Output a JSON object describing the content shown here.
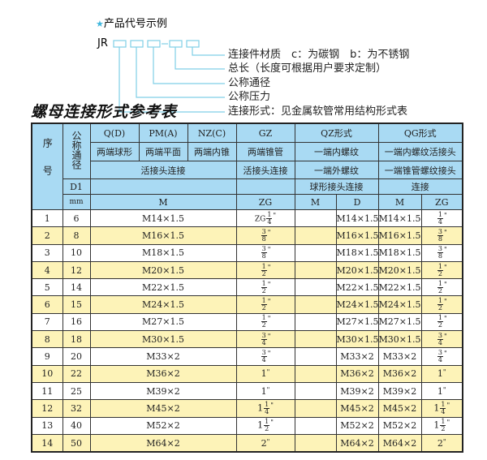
{
  "example": {
    "heading": "产品代号示例",
    "code_prefix": "JR",
    "separator": "-",
    "labels": [
      "连接件材质　c：为碳钢　b：为不锈钢",
      "总长（长度可根据用户要求定制）",
      "公称通径",
      "公称压力",
      "连接形式：见金属软管常用结构形式表"
    ],
    "accent_color": "#3fb6dc"
  },
  "table_title": "螺母连接形式参考表",
  "header": {
    "seq": "序号",
    "nominal": "公称通径",
    "qd": "Q(D)",
    "pma": "PM(A)",
    "nzc": "NZ(C)",
    "gz": "GZ",
    "qz": "QZ形式",
    "qg": "QG形式",
    "qd_desc": "两端球形",
    "pma_desc": "两端平面",
    "nzc_desc": "两端内锥",
    "gz_desc": "两端锥管",
    "qz_desc": "一端内螺纹",
    "qg_desc": "一端内螺纹活接头",
    "union": "活接头连接",
    "gz_union": "活接头连接",
    "qz_desc2": "一端外螺纹",
    "qg_desc2": "一端锥管螺纹接头",
    "d1": "D1",
    "qz_desc3": "球形接头连接",
    "qg_desc3": "连接",
    "mm": "mm",
    "m": "M",
    "zg": "ZG",
    "qz_m": "M",
    "qz_d": "D",
    "qg_m": "M",
    "qg_zg": "ZG",
    "bg_color": "#a9daf3"
  },
  "rows": [
    {
      "no": "1",
      "dn": "6",
      "m": "M14×1.5",
      "zg": {
        "pre": "ZG",
        "whole": "",
        "num": "1",
        "den": "4"
      },
      "qz_m": "",
      "qz_d": "M14×1.5",
      "qg_m": "M14×1.5",
      "qg_zg": {
        "pre": "",
        "whole": "",
        "num": "1",
        "den": "4"
      }
    },
    {
      "no": "2",
      "dn": "8",
      "m": "M16×1.5",
      "zg": {
        "pre": "",
        "whole": "",
        "num": "3",
        "den": "8"
      },
      "qz_m": "",
      "qz_d": "M16×1.5",
      "qg_m": "M16×1.5",
      "qg_zg": {
        "pre": "",
        "whole": "",
        "num": "3",
        "den": "8"
      }
    },
    {
      "no": "3",
      "dn": "10",
      "m": "M18×1.5",
      "zg": {
        "pre": "",
        "whole": "",
        "num": "3",
        "den": "8"
      },
      "qz_m": "",
      "qz_d": "M18×1.5",
      "qg_m": "M18×1.5",
      "qg_zg": {
        "pre": "",
        "whole": "",
        "num": "3",
        "den": "8"
      }
    },
    {
      "no": "4",
      "dn": "12",
      "m": "M20×1.5",
      "zg": {
        "pre": "",
        "whole": "",
        "num": "1",
        "den": "2"
      },
      "qz_m": "",
      "qz_d": "M20×1.5",
      "qg_m": "M20×1.5",
      "qg_zg": {
        "pre": "",
        "whole": "",
        "num": "1",
        "den": "2"
      }
    },
    {
      "no": "5",
      "dn": "14",
      "m": "M22×1.5",
      "zg": {
        "pre": "",
        "whole": "",
        "num": "1",
        "den": "2"
      },
      "qz_m": "",
      "qz_d": "M22×1.5",
      "qg_m": "M22×1.5",
      "qg_zg": {
        "pre": "",
        "whole": "",
        "num": "1",
        "den": "2"
      }
    },
    {
      "no": "6",
      "dn": "15",
      "m": "M24×1.5",
      "zg": {
        "pre": "",
        "whole": "",
        "num": "1",
        "den": "2"
      },
      "qz_m": "",
      "qz_d": "M24×1.5",
      "qg_m": "M24×1.5",
      "qg_zg": {
        "pre": "",
        "whole": "",
        "num": "1",
        "den": "2"
      }
    },
    {
      "no": "7",
      "dn": "16",
      "m": "M27×1.5",
      "zg": {
        "pre": "",
        "whole": "",
        "num": "1",
        "den": "2"
      },
      "qz_m": "",
      "qz_d": "M27×1.5",
      "qg_m": "M27×1.5",
      "qg_zg": {
        "pre": "",
        "whole": "",
        "num": "1",
        "den": "2"
      }
    },
    {
      "no": "8",
      "dn": "18",
      "m": "M30×1.5",
      "zg": {
        "pre": "",
        "whole": "",
        "num": "3",
        "den": "4"
      },
      "qz_m": "",
      "qz_d": "M30×1.5",
      "qg_m": "M30×1.5",
      "qg_zg": {
        "pre": "",
        "whole": "",
        "num": "3",
        "den": "4"
      }
    },
    {
      "no": "9",
      "dn": "20",
      "m": "M33×2",
      "zg": {
        "pre": "",
        "whole": "",
        "num": "3",
        "den": "4"
      },
      "qz_m": "",
      "qz_d": "M33×2",
      "qg_m": "M33×2",
      "qg_zg": {
        "pre": "",
        "whole": "",
        "num": "3",
        "den": "4"
      }
    },
    {
      "no": "10",
      "dn": "22",
      "m": "M36×2",
      "zg": {
        "pre": "",
        "whole": "1",
        "num": "",
        "den": ""
      },
      "qz_m": "",
      "qz_d": "M36×2",
      "qg_m": "M36×2",
      "qg_zg": {
        "pre": "",
        "whole": "1",
        "num": "",
        "den": ""
      }
    },
    {
      "no": "11",
      "dn": "25",
      "m": "M39×2",
      "zg": {
        "pre": "",
        "whole": "1",
        "num": "",
        "den": ""
      },
      "qz_m": "",
      "qz_d": "M39×2",
      "qg_m": "M39×2",
      "qg_zg": {
        "pre": "",
        "whole": "1",
        "num": "",
        "den": ""
      }
    },
    {
      "no": "12",
      "dn": "32",
      "m": "M45×2",
      "zg": {
        "pre": "",
        "whole": "1",
        "num": "1",
        "den": "4"
      },
      "qz_m": "",
      "qz_d": "M45×2",
      "qg_m": "M45×2",
      "qg_zg": {
        "pre": "",
        "whole": "1",
        "num": "1",
        "den": "4"
      }
    },
    {
      "no": "13",
      "dn": "40",
      "m": "M52×2",
      "zg": {
        "pre": "",
        "whole": "1",
        "num": "1",
        "den": "2"
      },
      "qz_m": "",
      "qz_d": "M52×2",
      "qg_m": "M52×2",
      "qg_zg": {
        "pre": "",
        "whole": "1",
        "num": "1",
        "den": "2"
      }
    },
    {
      "no": "14",
      "dn": "50",
      "m": "M64×2",
      "zg": {
        "pre": "",
        "whole": "2",
        "num": "",
        "den": ""
      },
      "qz_m": "",
      "qz_d": "M64×2",
      "qg_m": "M64×2",
      "qg_zg": {
        "pre": "",
        "whole": "2",
        "num": "",
        "den": ""
      }
    }
  ],
  "inch_mark": "\"",
  "stripe_color": "#fdf3b8"
}
